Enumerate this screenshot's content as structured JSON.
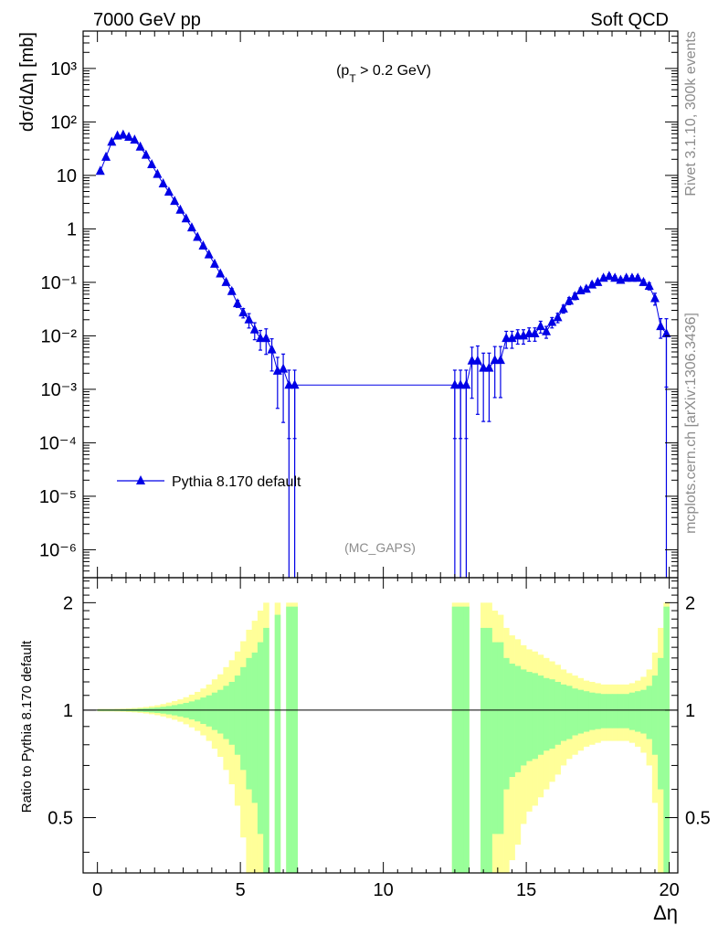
{
  "header": {
    "left": "7000 GeV pp",
    "right": "Soft QCD"
  },
  "side": {
    "rivet": "Rivet 3.1.10,  300k events",
    "mcplots": "mcplots.cern.ch [arXiv:1306.3436]"
  },
  "chart_data": {
    "type": "line",
    "annotation": "(p_T > 0.2 GeV)",
    "analysis_label": "(MC_GAPS)",
    "xlabel": "Δη",
    "ylabel": "dσ/dΔη [mb]",
    "ratio_ylabel": "Ratio to Pythia 8.170 default",
    "xlim": [
      -0.5,
      20.3
    ],
    "ylim": [
      3e-07,
      5000
    ],
    "ylog": true,
    "ratio_ylim": [
      0.35,
      2.35
    ],
    "xticks": [
      0,
      5,
      10,
      15,
      20
    ],
    "ytick_labels": [
      "10⁻⁶",
      "10⁻⁵",
      "10⁻⁴",
      "10⁻³",
      "10⁻²",
      "10⁻¹",
      "1",
      "10",
      "10²",
      "10³"
    ],
    "ratio_ytick_labels": [
      "0.5",
      "1",
      "2"
    ],
    "legend": "Pythia 8.170 default",
    "colors": {
      "line": "#0000e6",
      "band_inner": "#99ff99",
      "band_outer": "#ffff99"
    },
    "series": [
      {
        "name": "Pythia 8.170 default",
        "x": [
          0.1,
          0.3,
          0.5,
          0.7,
          0.9,
          1.1,
          1.3,
          1.5,
          1.7,
          1.9,
          2.1,
          2.3,
          2.5,
          2.7,
          2.9,
          3.1,
          3.3,
          3.5,
          3.7,
          3.9,
          4.1,
          4.3,
          4.5,
          4.7,
          4.9,
          5.1,
          5.3,
          5.5,
          5.7,
          5.9,
          6.1,
          6.3,
          6.5,
          6.7,
          6.9,
          12.5,
          12.7,
          12.9,
          13.1,
          13.3,
          13.5,
          13.7,
          13.9,
          14.1,
          14.3,
          14.5,
          14.7,
          14.9,
          15.1,
          15.3,
          15.5,
          15.7,
          15.9,
          16.1,
          16.3,
          16.5,
          16.7,
          16.9,
          17.1,
          17.3,
          17.5,
          17.7,
          17.9,
          18.1,
          18.3,
          18.5,
          18.7,
          18.9,
          19.1,
          19.3,
          19.5,
          19.7,
          19.9
        ],
        "y": [
          12,
          22,
          42,
          55,
          57,
          52,
          46,
          34,
          24,
          16,
          10.5,
          7,
          4.9,
          3.3,
          2.25,
          1.55,
          1.05,
          0.7,
          0.48,
          0.33,
          0.22,
          0.145,
          0.1,
          0.068,
          0.04,
          0.027,
          0.02,
          0.013,
          0.009,
          0.009,
          0.0055,
          0.0022,
          0.0024,
          0.0012,
          0.0012,
          0.0012,
          0.0012,
          0.0012,
          0.0034,
          0.0034,
          0.0025,
          0.0025,
          0.0035,
          0.0035,
          0.009,
          0.009,
          0.01,
          0.01,
          0.011,
          0.011,
          0.015,
          0.012,
          0.018,
          0.022,
          0.032,
          0.045,
          0.055,
          0.07,
          0.075,
          0.09,
          0.1,
          0.12,
          0.13,
          0.12,
          0.11,
          0.12,
          0.12,
          0.12,
          0.1,
          0.085,
          0.05,
          0.015,
          0.011
        ],
        "yerr_frac": [
          0.005,
          0.005,
          0.005,
          0.005,
          0.005,
          0.005,
          0.005,
          0.005,
          0.006,
          0.007,
          0.008,
          0.01,
          0.012,
          0.015,
          0.018,
          0.022,
          0.027,
          0.033,
          0.04,
          0.05,
          0.06,
          0.08,
          0.1,
          0.12,
          0.15,
          0.2,
          0.3,
          0.35,
          0.4,
          0.5,
          0.6,
          0.8,
          0.9,
          0.9,
          0.9,
          0.9,
          0.9,
          0.9,
          0.8,
          0.9,
          0.9,
          0.9,
          0.8,
          0.8,
          0.35,
          0.35,
          0.3,
          0.3,
          0.28,
          0.28,
          0.25,
          0.25,
          0.22,
          0.2,
          0.17,
          0.15,
          0.14,
          0.12,
          0.12,
          0.11,
          0.1,
          0.1,
          0.1,
          0.1,
          0.1,
          0.1,
          0.1,
          0.1,
          0.12,
          0.15,
          0.25,
          0.4,
          0.9
        ]
      }
    ],
    "ratio_bands": {
      "x": [
        0.1,
        0.3,
        0.5,
        0.7,
        0.9,
        1.1,
        1.3,
        1.5,
        1.7,
        1.9,
        2.1,
        2.3,
        2.5,
        2.7,
        2.9,
        3.1,
        3.3,
        3.5,
        3.7,
        3.9,
        4.1,
        4.3,
        4.5,
        4.7,
        4.9,
        5.1,
        5.3,
        5.5,
        5.7,
        5.9,
        6.1,
        6.3,
        6.5,
        6.7,
        6.9,
        12.5,
        12.7,
        12.9,
        13.1,
        13.3,
        13.5,
        13.7,
        13.9,
        14.1,
        14.3,
        14.5,
        14.7,
        14.9,
        15.1,
        15.3,
        15.5,
        15.7,
        15.9,
        16.1,
        16.3,
        16.5,
        16.7,
        16.9,
        17.1,
        17.3,
        17.5,
        17.7,
        17.9,
        18.1,
        18.3,
        18.5,
        18.7,
        18.9,
        19.1,
        19.3,
        19.5,
        19.7,
        19.9
      ],
      "inner": [
        0.005,
        0.005,
        0.005,
        0.005,
        0.006,
        0.007,
        0.008,
        0.01,
        0.012,
        0.015,
        0.018,
        0.022,
        0.027,
        0.033,
        0.04,
        0.048,
        0.058,
        0.07,
        0.085,
        0.1,
        0.12,
        0.14,
        0.17,
        0.2,
        0.25,
        0.32,
        0.4,
        0.45,
        0.55,
        0.7,
        0.0,
        0.85,
        0.0,
        0.95,
        0.95,
        0.95,
        0.95,
        0.95,
        0.0,
        0.0,
        0.7,
        0.7,
        0.55,
        0.55,
        0.4,
        0.35,
        0.33,
        0.3,
        0.28,
        0.27,
        0.25,
        0.23,
        0.22,
        0.2,
        0.18,
        0.17,
        0.15,
        0.14,
        0.13,
        0.12,
        0.115,
        0.11,
        0.11,
        0.11,
        0.11,
        0.11,
        0.12,
        0.13,
        0.14,
        0.17,
        0.25,
        0.4,
        0.95
      ],
      "outer": [
        0.008,
        0.008,
        0.008,
        0.009,
        0.01,
        0.012,
        0.014,
        0.017,
        0.021,
        0.026,
        0.032,
        0.04,
        0.05,
        0.06,
        0.072,
        0.087,
        0.105,
        0.125,
        0.15,
        0.18,
        0.22,
        0.26,
        0.32,
        0.38,
        0.46,
        0.56,
        0.68,
        0.78,
        0.9,
        1.0,
        0.0,
        1.0,
        0.0,
        1.0,
        1.0,
        1.0,
        1.0,
        1.0,
        0.0,
        0.0,
        1.0,
        1.0,
        0.9,
        0.85,
        0.7,
        0.62,
        0.58,
        0.52,
        0.48,
        0.46,
        0.43,
        0.4,
        0.37,
        0.34,
        0.3,
        0.27,
        0.25,
        0.23,
        0.21,
        0.2,
        0.19,
        0.18,
        0.18,
        0.18,
        0.18,
        0.18,
        0.19,
        0.21,
        0.24,
        0.3,
        0.45,
        0.7,
        1.0
      ]
    }
  }
}
